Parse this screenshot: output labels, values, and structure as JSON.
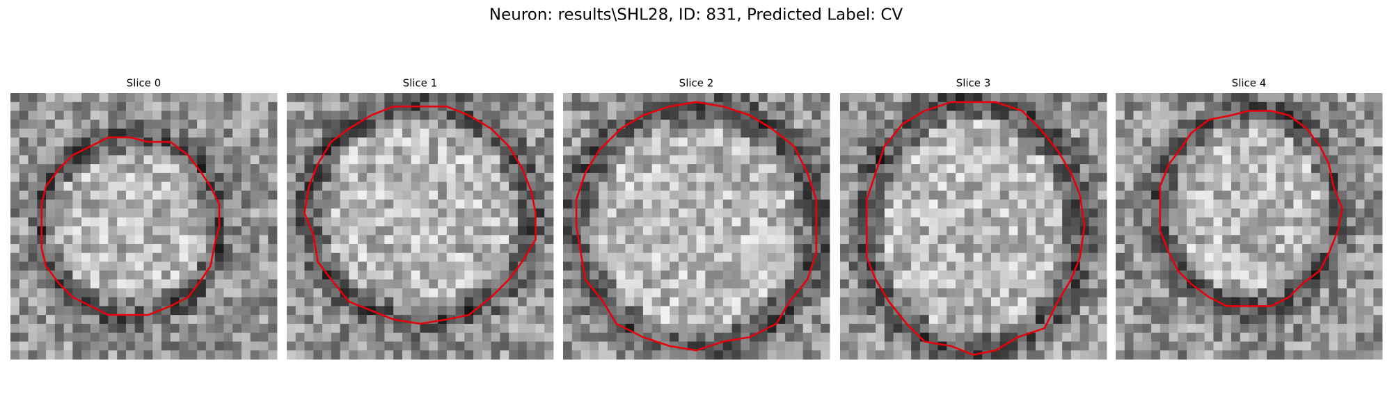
{
  "title": "Neuron: results\\SHL28, ID: 831, Predicted Label: CV",
  "panels": [
    {
      "title": "Slice 0"
    },
    {
      "title": "Slice 1"
    },
    {
      "title": "Slice 2"
    },
    {
      "title": "Slice 3"
    },
    {
      "title": "Slice 4"
    }
  ]
}
